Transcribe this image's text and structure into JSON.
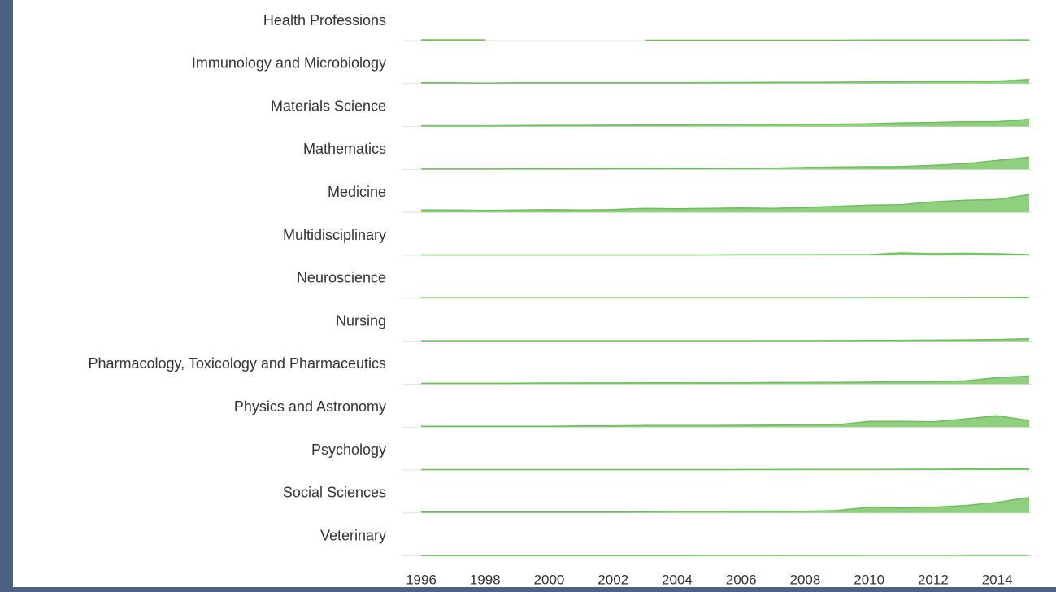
{
  "chart_data": {
    "type": "area",
    "x": [
      1996,
      1997,
      1998,
      1999,
      2000,
      2001,
      2002,
      2003,
      2004,
      2005,
      2006,
      2007,
      2008,
      2009,
      2010,
      2011,
      2012,
      2013,
      2014,
      2015
    ],
    "xlim": [
      1996,
      2015
    ],
    "xticks": [
      1996,
      1998,
      2000,
      2002,
      2004,
      2006,
      2008,
      2010,
      2012,
      2014
    ],
    "ylim": [
      0,
      25
    ],
    "color": "#8fcf7e",
    "series": [
      {
        "name": "Health Professions",
        "values": [
          1,
          1,
          1,
          null,
          null,
          null,
          null,
          0.5,
          0.5,
          0.5,
          0.5,
          0.5,
          0.5,
          0.5,
          0.7,
          0.8,
          0.8,
          0.8,
          0.8,
          1
        ]
      },
      {
        "name": "Immunology and Microbiology",
        "values": [
          1,
          1,
          0.5,
          1,
          1,
          1,
          1,
          1,
          1,
          1.2,
          1.3,
          1.5,
          1.6,
          1.8,
          2,
          2.2,
          2.4,
          2.6,
          3,
          5
        ]
      },
      {
        "name": "Materials Science",
        "values": [
          1,
          1,
          1,
          1.2,
          1.5,
          1.5,
          1.7,
          1.8,
          2,
          2.2,
          2.4,
          2.6,
          2.8,
          3,
          3.5,
          4.5,
          5,
          6,
          6,
          9
        ]
      },
      {
        "name": "Mathematics",
        "values": [
          0.5,
          0.5,
          0.5,
          0.6,
          0.7,
          0.8,
          1,
          1,
          1.2,
          1.2,
          1.4,
          1.6,
          2.5,
          3,
          3.5,
          3.5,
          5,
          7,
          11,
          15
        ]
      },
      {
        "name": "Medicine",
        "values": [
          3,
          3,
          2.5,
          3,
          3.5,
          3,
          3.5,
          5,
          4.5,
          5,
          5.5,
          5,
          6,
          7.5,
          9,
          9.5,
          13,
          15,
          16,
          22
        ]
      },
      {
        "name": "Multidisciplinary",
        "values": [
          0.5,
          0.5,
          0.5,
          0.5,
          0.5,
          0.5,
          0.5,
          0.5,
          0.5,
          0.5,
          0.7,
          0.8,
          0.8,
          0.9,
          1,
          3,
          2,
          2.5,
          2,
          1
        ]
      },
      {
        "name": "Neuroscience",
        "values": [
          0.5,
          0.5,
          0.5,
          0.5,
          0.5,
          0.5,
          0.5,
          0.5,
          0.5,
          0.5,
          0.5,
          0.5,
          0.6,
          0.6,
          0.7,
          0.7,
          0.8,
          0.8,
          0.9,
          1
        ]
      },
      {
        "name": "Nursing",
        "values": [
          0.5,
          0.5,
          0.5,
          0.5,
          0.5,
          0.5,
          0.5,
          0.5,
          0.5,
          0.5,
          0.5,
          0.6,
          0.6,
          0.7,
          0.8,
          1,
          1.2,
          1.5,
          2,
          3
        ]
      },
      {
        "name": "Pharmacology, Toxicology and Pharmaceutics",
        "values": [
          1,
          1,
          1,
          1.2,
          1.4,
          1.5,
          1.5,
          1.6,
          1.7,
          1.5,
          1.7,
          2,
          2,
          2.2,
          2.5,
          3,
          3,
          4,
          8,
          10
        ]
      },
      {
        "name": "Physics and Astronomy",
        "values": [
          1,
          1,
          1,
          1,
          1,
          1.5,
          1.5,
          2,
          2,
          2,
          2.2,
          2.5,
          2.7,
          2.8,
          7,
          7,
          6.5,
          10,
          14,
          8
        ]
      },
      {
        "name": "Psychology",
        "values": [
          0.5,
          0.5,
          0.5,
          0.5,
          0.5,
          0.5,
          0.5,
          0.5,
          0.5,
          0.5,
          0.6,
          0.6,
          0.7,
          0.7,
          0.8,
          0.9,
          1,
          1.2,
          1.4,
          1.5
        ]
      },
      {
        "name": "Social Sciences",
        "values": [
          1,
          1,
          1,
          1,
          1,
          1,
          1,
          1.5,
          2,
          2,
          2.2,
          2.2,
          2,
          3,
          7,
          6,
          7,
          9,
          13,
          19
        ]
      },
      {
        "name": "Veterinary",
        "values": [
          0.5,
          0.5,
          0.5,
          0.5,
          0.5,
          0.5,
          0.5,
          0.5,
          0.5,
          0.6,
          0.6,
          0.6,
          0.7,
          0.7,
          0.8,
          0.8,
          0.9,
          1,
          1,
          1
        ]
      }
    ]
  }
}
